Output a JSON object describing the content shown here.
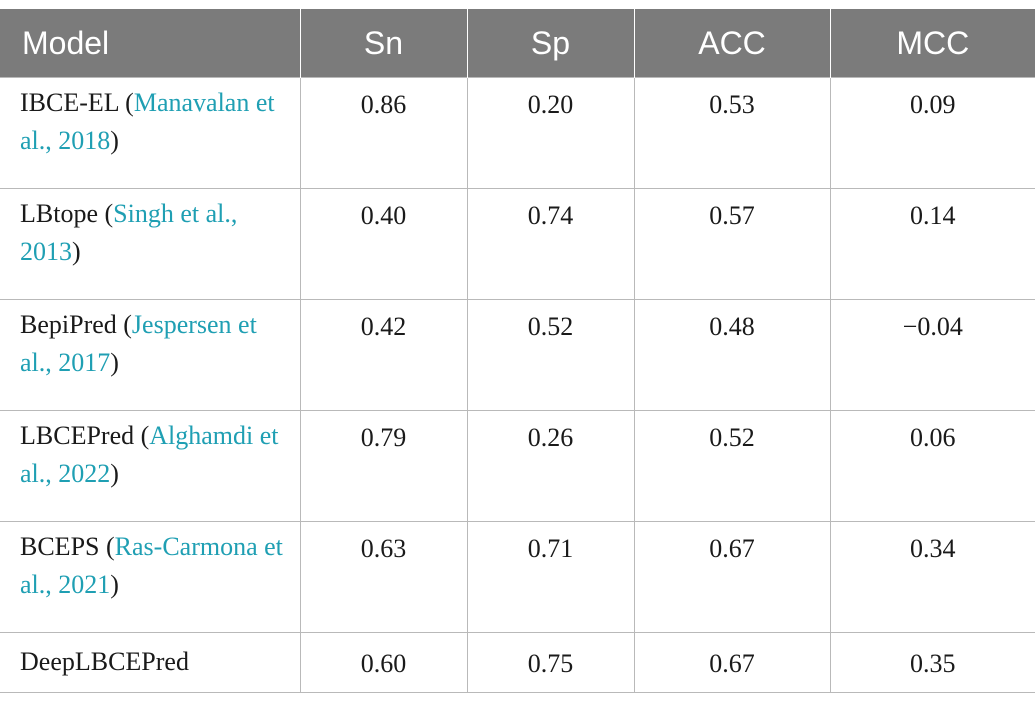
{
  "colors": {
    "header_bg": "#7b7b7b",
    "header_text": "#ffffff",
    "ref_link": "#1f9fb3",
    "grid": "#b9b9b9"
  },
  "header": [
    "Model",
    "Sn",
    "Sp",
    "ACC",
    "MCC"
  ],
  "rows": [
    {
      "name": "IBCE-EL (",
      "ref": "Manavalan et al., 2018",
      "close": ")",
      "values": [
        "0.86",
        "0.20",
        "0.53",
        "0.09"
      ]
    },
    {
      "name": "LBtope (",
      "ref": "Singh et al., 2013",
      "close": ")",
      "values": [
        "0.40",
        "0.74",
        "0.57",
        "0.14"
      ]
    },
    {
      "name": "BepiPred (",
      "ref": "Jespersen et al., 2017",
      "close": ")",
      "values": [
        "0.42",
        "0.52",
        "0.48",
        "−0.04"
      ]
    },
    {
      "name": "LBCEPred (",
      "ref": "Alghamdi et al., 2022",
      "close": ")",
      "values": [
        "0.79",
        "0.26",
        "0.52",
        "0.06"
      ]
    },
    {
      "name": "BCEPS (",
      "ref": "Ras-Carmona et al., 2021",
      "close": ")",
      "values": [
        "0.63",
        "0.71",
        "0.67",
        "0.34"
      ]
    },
    {
      "name": "DeepLBCEPred",
      "ref": "",
      "close": "",
      "values": [
        "0.60",
        "0.75",
        "0.67",
        "0.35"
      ]
    }
  ]
}
